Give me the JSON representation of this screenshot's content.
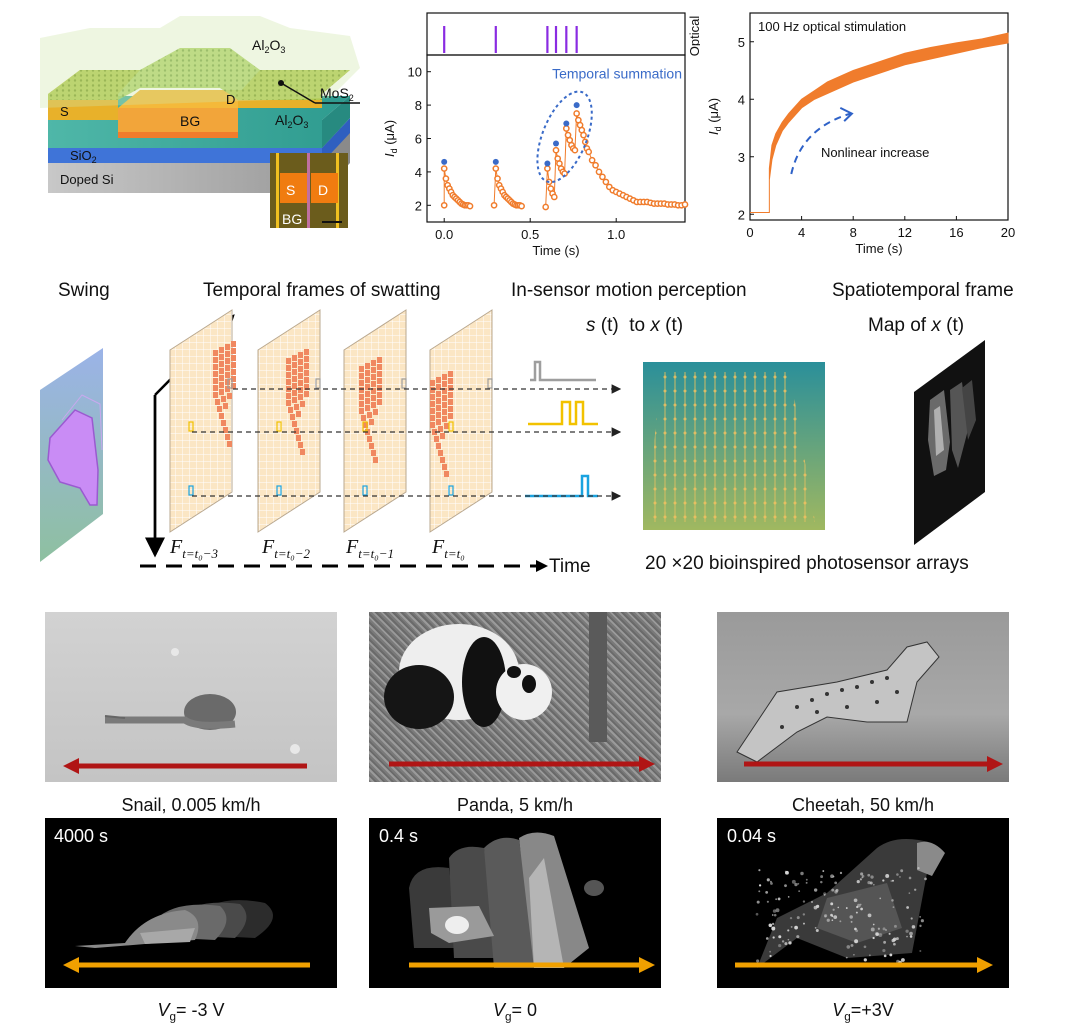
{
  "device_schematic": {
    "labels": {
      "top_dielectric": "Al2O3",
      "channel": "MoS2",
      "source": "S",
      "drain": "D",
      "gate": "BG",
      "gate_dielectric": "Al2O3",
      "oxide": "SiO2",
      "substrate": "Doped Si"
    },
    "inset": {
      "source": "S",
      "drain": "D",
      "gate": "BG"
    }
  },
  "chart_data": [
    {
      "type": "scatter",
      "title": "",
      "xlabel": "Time (s)",
      "ylabel": "Id (μA)",
      "xlim": [
        -0.1,
        1.4
      ],
      "ylim": [
        1,
        11
      ],
      "xticks": [
        "0.0",
        "0.5",
        "1.0"
      ],
      "yticks": [
        "2",
        "4",
        "6",
        "8",
        "10"
      ],
      "top_panel_label": "Optical",
      "optical_pulses_s": [
        0.0,
        0.3,
        0.6,
        0.65,
        0.71,
        0.77
      ],
      "annotation": "Temporal summation",
      "peaks": [
        {
          "x": 0.0,
          "y": 4.6
        },
        {
          "x": 0.3,
          "y": 4.6
        },
        {
          "x": 0.6,
          "y": 4.5
        },
        {
          "x": 0.65,
          "y": 5.7
        },
        {
          "x": 0.71,
          "y": 6.9
        },
        {
          "x": 0.77,
          "y": 8.0
        }
      ],
      "series": [
        {
          "name": "pulse1",
          "x": [
            0.0,
            0.0,
            0.01,
            0.02,
            0.03,
            0.04,
            0.05,
            0.06,
            0.07,
            0.08,
            0.09,
            0.1,
            0.11,
            0.12,
            0.13,
            0.14,
            0.15
          ],
          "y": [
            2.0,
            4.2,
            3.6,
            3.2,
            3.0,
            2.8,
            2.6,
            2.5,
            2.4,
            2.3,
            2.2,
            2.1,
            2.05,
            2.0,
            2.0,
            2.0,
            1.95
          ]
        },
        {
          "name": "pulse2",
          "x": [
            0.29,
            0.3,
            0.31,
            0.32,
            0.33,
            0.34,
            0.35,
            0.36,
            0.37,
            0.38,
            0.39,
            0.4,
            0.41,
            0.42,
            0.43,
            0.44,
            0.45
          ],
          "y": [
            2.0,
            4.2,
            3.6,
            3.2,
            3.0,
            2.8,
            2.6,
            2.5,
            2.4,
            2.3,
            2.2,
            2.1,
            2.05,
            2.0,
            2.0,
            2.0,
            1.95
          ]
        },
        {
          "name": "summation",
          "x": [
            0.59,
            0.6,
            0.61,
            0.62,
            0.63,
            0.64,
            0.65,
            0.66,
            0.67,
            0.68,
            0.69,
            0.7,
            0.71,
            0.72,
            0.73,
            0.74,
            0.75,
            0.76,
            0.77,
            0.78,
            0.79,
            0.8,
            0.81,
            0.82,
            0.83,
            0.84,
            0.86,
            0.88,
            0.9,
            0.92,
            0.94,
            0.96,
            0.98,
            1.0,
            1.02,
            1.04,
            1.06,
            1.08,
            1.1,
            1.12,
            1.14,
            1.16,
            1.18,
            1.2,
            1.22,
            1.24,
            1.26,
            1.28,
            1.3,
            1.32,
            1.34,
            1.36,
            1.38,
            1.4
          ],
          "y": [
            1.9,
            4.2,
            3.4,
            3.0,
            2.7,
            2.5,
            5.3,
            4.8,
            4.5,
            4.2,
            4.0,
            3.9,
            6.6,
            6.2,
            5.9,
            5.6,
            5.4,
            5.3,
            7.5,
            7.1,
            6.8,
            6.5,
            6.2,
            5.8,
            5.4,
            5.2,
            4.7,
            4.4,
            4.0,
            3.7,
            3.4,
            3.1,
            2.9,
            2.8,
            2.7,
            2.6,
            2.5,
            2.4,
            2.3,
            2.2,
            2.2,
            2.2,
            2.2,
            2.15,
            2.1,
            2.1,
            2.1,
            2.1,
            2.05,
            2.05,
            2.05,
            2.0,
            2.0,
            2.05
          ]
        }
      ],
      "colors": {
        "data": "#f07c2c",
        "peak": "#3a6bc8",
        "optical": "#8a2be2",
        "annotation": "#3a6bc8"
      }
    },
    {
      "type": "line",
      "title": "100 Hz optical stimulation",
      "xlabel": "Time (s)",
      "ylabel": "Id (μA)",
      "xlim": [
        0,
        20
      ],
      "ylim": [
        1.9,
        5.5
      ],
      "xticks": [
        "0",
        "4",
        "8",
        "12",
        "16",
        "20"
      ],
      "yticks": [
        "2",
        "3",
        "4",
        "5"
      ],
      "annotation": "Nonlinear increase",
      "x": [
        0,
        1.5,
        1.5,
        1.7,
        2.0,
        2.5,
        3.0,
        4.0,
        5.0,
        6.0,
        8.0,
        10.0,
        12.0,
        14.0,
        16.0,
        18.0,
        20.0
      ],
      "y_lower": [
        2.03,
        2.03,
        2.6,
        2.95,
        3.2,
        3.45,
        3.6,
        3.85,
        4.0,
        4.1,
        4.3,
        4.45,
        4.6,
        4.7,
        4.8,
        4.9,
        4.98
      ],
      "y_upper": [
        2.03,
        2.03,
        2.8,
        3.2,
        3.4,
        3.6,
        3.75,
        4.0,
        4.15,
        4.3,
        4.5,
        4.65,
        4.8,
        4.9,
        4.98,
        5.05,
        5.15
      ],
      "colors": {
        "data": "#f07c2c",
        "annotation": "#2f62c8"
      }
    }
  ],
  "middle": {
    "headings": {
      "swing": "Swing",
      "frames": "Temporal frames of swatting",
      "perception": "In-sensor motion perception",
      "perception_sub": "s (t)  to x (t)",
      "spatiotemporal": "Spatiotemporal frame",
      "spatiotemporal_sub": "Map of x (t)"
    },
    "frame_labels": [
      "F t=t0−3",
      "F t=t0−2",
      "F t=t0−1",
      "F t=t0"
    ],
    "frame_subscripts": [
      "t=t₀−3",
      "t=t₀−2",
      "t=t₀−1",
      "t=t₀"
    ],
    "time_label": "Time",
    "array_caption": "20 ×20 bioinspired photosensor arrays",
    "signal_colors": [
      "#9e9e9e",
      "#f2c200",
      "#1aa3e0"
    ]
  },
  "bottom": {
    "animals": [
      {
        "caption": "Snail, 0.005 km/h",
        "duration": "4000 s",
        "vg_value": "= -3 V",
        "direction": "left"
      },
      {
        "caption": "Panda, 5 km/h",
        "duration": "0.4 s",
        "vg_value": "= 0",
        "direction": "right"
      },
      {
        "caption": "Cheetah, 50 km/h",
        "duration": "0.04 s",
        "vg_value": "=+3V",
        "direction": "right"
      }
    ],
    "vg_symbol": "V",
    "vg_sub": "g",
    "arrow_colors": {
      "photo": "#b01515",
      "map": "#f0a000"
    }
  }
}
